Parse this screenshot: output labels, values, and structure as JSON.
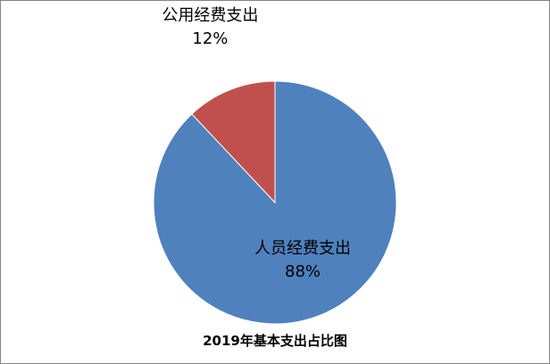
{
  "chart_data": {
    "type": "pie",
    "title": "2019年基本支出占比图",
    "categories": [
      "人员经费支出",
      "公用经费支出"
    ],
    "values": [
      88,
      12
    ],
    "value_labels": [
      "88%",
      "12%"
    ],
    "colors": [
      "#4f81bd",
      "#c0504d"
    ]
  }
}
